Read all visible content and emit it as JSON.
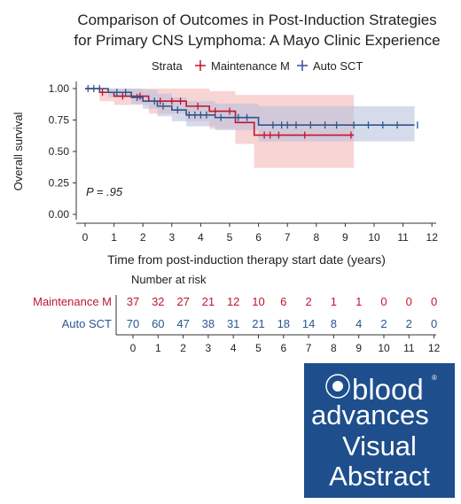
{
  "chart_data": {
    "type": "line",
    "subtype": "kaplan-meier",
    "title_lines": [
      "Comparison of Outcomes in Post-Induction Strategies",
      "for Primary CNS Lymphoma: A Mayo Clinic Experience"
    ],
    "legend": {
      "title": "Strata",
      "placement": "top"
    },
    "xlabel": "Time from post-induction therapy start date (years)",
    "ylabel": "Overall survival",
    "xlim": [
      0,
      12
    ],
    "ylim": [
      0,
      1
    ],
    "x_ticks": [
      "0",
      "1",
      "2",
      "3",
      "4",
      "5",
      "6",
      "7",
      "8",
      "9",
      "10",
      "11",
      "12"
    ],
    "y_ticks": [
      "0.00",
      "0.25",
      "0.50",
      "0.75",
      "1.00"
    ],
    "annotation": "P = .95",
    "series": [
      {
        "name": "Maintenance M",
        "color": "#c0152f",
        "band_color": "#f2b0b0",
        "steps": [
          [
            0,
            1.0
          ],
          [
            0.5,
            0.97
          ],
          [
            1.0,
            0.94
          ],
          [
            2.2,
            0.9
          ],
          [
            3.5,
            0.86
          ],
          [
            4.3,
            0.82
          ],
          [
            5.2,
            0.73
          ],
          [
            5.85,
            0.63
          ],
          [
            9.3,
            0.63
          ]
        ],
        "ci_lower": [
          1.0,
          0.9,
          0.87,
          0.8,
          0.74,
          0.68,
          0.56,
          0.37,
          0.37
        ],
        "ci_upper": [
          1.0,
          1.0,
          1.0,
          1.0,
          1.0,
          0.98,
          0.95,
          0.95,
          0.95
        ],
        "censored": [
          0.6,
          1.3,
          1.9,
          2.6,
          3.0,
          3.3,
          3.9,
          4.5,
          5.0,
          6.2,
          6.4,
          6.7,
          7.6,
          9.2
        ]
      },
      {
        "name": "Auto SCT",
        "color": "#2a5690",
        "band_color": "#b5bedc",
        "steps": [
          [
            0,
            1.0
          ],
          [
            0.8,
            0.97
          ],
          [
            1.6,
            0.93
          ],
          [
            2.0,
            0.9
          ],
          [
            2.5,
            0.86
          ],
          [
            3.0,
            0.83
          ],
          [
            3.5,
            0.79
          ],
          [
            4.5,
            0.77
          ],
          [
            6.0,
            0.71
          ],
          [
            11.4,
            0.71
          ]
        ],
        "ci_lower": [
          1.0,
          0.93,
          0.88,
          0.84,
          0.78,
          0.74,
          0.7,
          0.67,
          0.58,
          0.58
        ],
        "ci_upper": [
          1.0,
          1.0,
          1.0,
          0.99,
          0.96,
          0.93,
          0.9,
          0.88,
          0.86,
          0.86
        ],
        "censored": [
          0.1,
          0.3,
          0.5,
          1.1,
          1.4,
          1.8,
          2.4,
          2.7,
          3.2,
          3.6,
          3.8,
          4.0,
          4.2,
          4.7,
          5.3,
          5.6,
          6.5,
          6.8,
          7.0,
          7.3,
          7.8,
          8.3,
          8.7,
          9.3,
          9.8,
          10.3,
          10.8,
          11.5
        ]
      }
    ],
    "risk_table": {
      "title": "Number at risk",
      "times": [
        "0",
        "1",
        "2",
        "3",
        "4",
        "5",
        "6",
        "7",
        "8",
        "9",
        "10",
        "11",
        "12"
      ],
      "rows": [
        {
          "name": "Maintenance M",
          "color": "#c0152f",
          "values": [
            "37",
            "32",
            "27",
            "21",
            "12",
            "10",
            "6",
            "2",
            "1",
            "1",
            "0",
            "0",
            "0"
          ]
        },
        {
          "name": "Auto SCT",
          "color": "#2a5690",
          "values": [
            "70",
            "60",
            "47",
            "38",
            "31",
            "21",
            "18",
            "14",
            "8",
            "4",
            "2",
            "2",
            "0"
          ]
        }
      ]
    }
  },
  "logo": {
    "lines": [
      "blood",
      "advances",
      "Visual",
      "Abstract"
    ],
    "background": "#1e4e8c",
    "text_color": "#ffffff"
  }
}
